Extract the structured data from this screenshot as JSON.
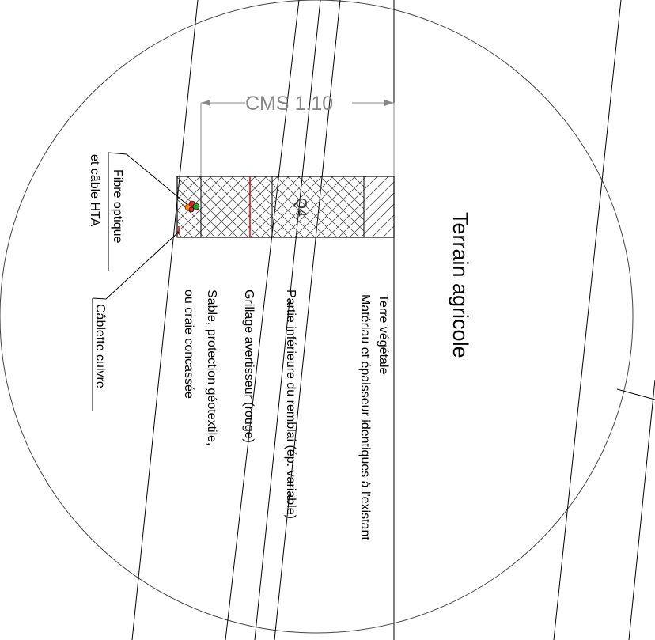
{
  "diagram": {
    "dimension_label": "CMS 1.10",
    "layer_code": "Q4",
    "terrain_title": "Terrain agricole",
    "labels": {
      "terre_vegetale": "Terre végétale",
      "materiau": "Matériau et épaisseur identiques à l'existant",
      "partie_inferieure": "Partie inférieure du remblai (ép. variable)",
      "grillage": "Grillage avertisseur (rouge)",
      "sable_line1": "Sable, protection géotextile,",
      "sable_line2": "ou craie concassée",
      "fibre_line1": "Fibre optique",
      "fibre_line2": "et câble HTA",
      "cablette": "Câblette cuivre"
    },
    "colors": {
      "line": "#000000",
      "dimension": "#888888",
      "warning_mesh": "#e00000",
      "cable_orange": "#ff8c00",
      "cable_green": "#2ca02c",
      "cable_red": "#d62728"
    }
  }
}
